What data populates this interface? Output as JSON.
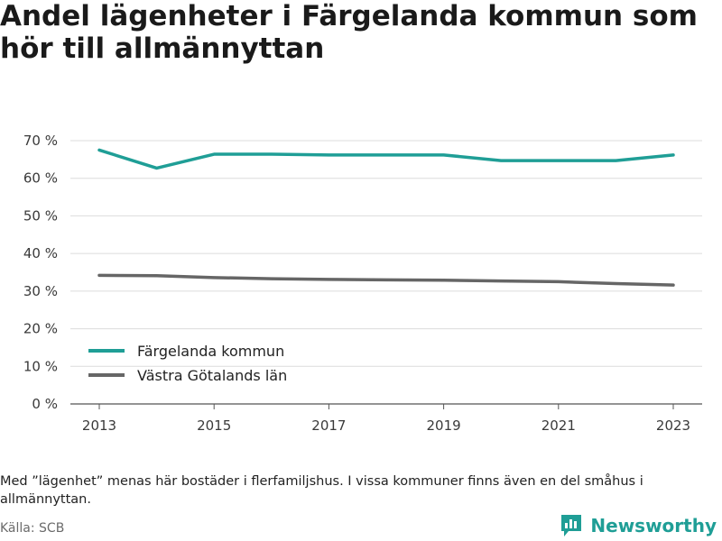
{
  "title": "Andel lägenheter i Färgelanda kommun som hör till allmännyttan",
  "note": "Med ”lägenhet” menas här bostäder i flerfamiljshus. I vissa kommuner finns även en del småhus i allmännyttan.",
  "source": "Källa: SCB",
  "brand": {
    "name": "Newsworthy",
    "icon": "newsworthy-logo-icon"
  },
  "chart_data": {
    "type": "line",
    "title": "Andel lägenheter i Färgelanda kommun som hör till allmännyttan",
    "xlabel": "",
    "ylabel": "",
    "x": [
      2013,
      2014,
      2015,
      2016,
      2017,
      2018,
      2019,
      2020,
      2021,
      2022,
      2023
    ],
    "x_ticks": [
      "2013",
      "2015",
      "2017",
      "2019",
      "2021",
      "2023"
    ],
    "y_ticks": [
      "0 %",
      "10 %",
      "20 %",
      "30 %",
      "40 %",
      "50 %",
      "60 %",
      "70 %"
    ],
    "ylim": [
      0,
      70
    ],
    "grid": true,
    "legend_position": "bottom-left",
    "series": [
      {
        "name": "Färgelanda kommun",
        "color": "#1f9e96",
        "values": [
          67.5,
          62.7,
          66.4,
          66.4,
          66.2,
          66.2,
          66.2,
          64.7,
          64.7,
          64.7,
          66.2
        ]
      },
      {
        "name": "Västra Götalands län",
        "color": "#666666",
        "values": [
          34.2,
          34.1,
          33.6,
          33.3,
          33.1,
          33.0,
          32.9,
          32.7,
          32.5,
          32.0,
          31.6
        ]
      }
    ]
  }
}
